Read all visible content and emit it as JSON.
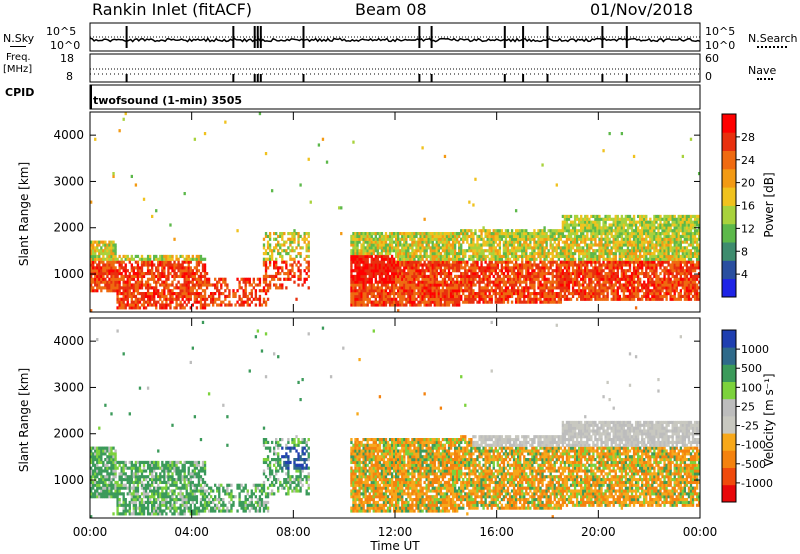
{
  "header": {
    "station": "Rankin Inlet (fitACF)",
    "beam": "Beam 08",
    "date": "01/Nov/2018"
  },
  "top_panel": {
    "left_label": "N.Sky",
    "right_label": "N.Search",
    "left_ticks": [
      "10^5",
      "10^0"
    ],
    "right_ticks": [
      "10^5",
      "10^0"
    ]
  },
  "freq_panel": {
    "left_label_line1": "Freq.",
    "left_label_line2": "[MHz]",
    "right_label": "Nave",
    "left_ticks": [
      "18",
      "8"
    ],
    "right_ticks": [
      "60",
      "0"
    ]
  },
  "cpid": {
    "label": "CPID",
    "value": "twofsound (1-min) 3505"
  },
  "colors": {
    "power_scale": [
      "#1f24e6",
      "#2a4fa0",
      "#3e8c6e",
      "#5cb84a",
      "#a8d23c",
      "#f0c21e",
      "#f39a14",
      "#ef6a10",
      "#e8300e",
      "#ff0000"
    ],
    "velocity_scale": [
      "#e8080a",
      "#f04a0c",
      "#f4820e",
      "#f7a81a",
      "#c8c8c0",
      "#bdbdbd",
      "#7cd23c",
      "#3b9a5a",
      "#2f6a8a",
      "#1f3fb0"
    ]
  },
  "chart_data": [
    {
      "type": "heatmap",
      "name": "power",
      "xlabel": "",
      "ylabel": "Slant Range [km]",
      "x_ticks": [
        "00:00",
        "04:00",
        "08:00",
        "12:00",
        "16:00",
        "20:00",
        "00:00"
      ],
      "y_ticks": [
        "1000",
        "2000",
        "3000",
        "4000"
      ],
      "ylim": [
        180,
        4500
      ],
      "colorbar_label": "Power [dB]",
      "colorbar_ticks": [
        "4",
        "8",
        "12",
        "16",
        "20",
        "24",
        "28"
      ]
    },
    {
      "type": "heatmap",
      "name": "velocity",
      "xlabel": "Time UT",
      "ylabel": "Slant Range [km]",
      "x_ticks": [
        "00:00",
        "04:00",
        "08:00",
        "12:00",
        "16:00",
        "20:00",
        "00:00"
      ],
      "y_ticks": [
        "1000",
        "2000",
        "3000",
        "4000"
      ],
      "ylim": [
        180,
        4500
      ],
      "colorbar_label": "Velocity [m s⁻¹]",
      "colorbar_ticks": [
        "-1000",
        "-500",
        "-100",
        "-25",
        "25",
        "100",
        "500",
        "1000"
      ]
    }
  ]
}
